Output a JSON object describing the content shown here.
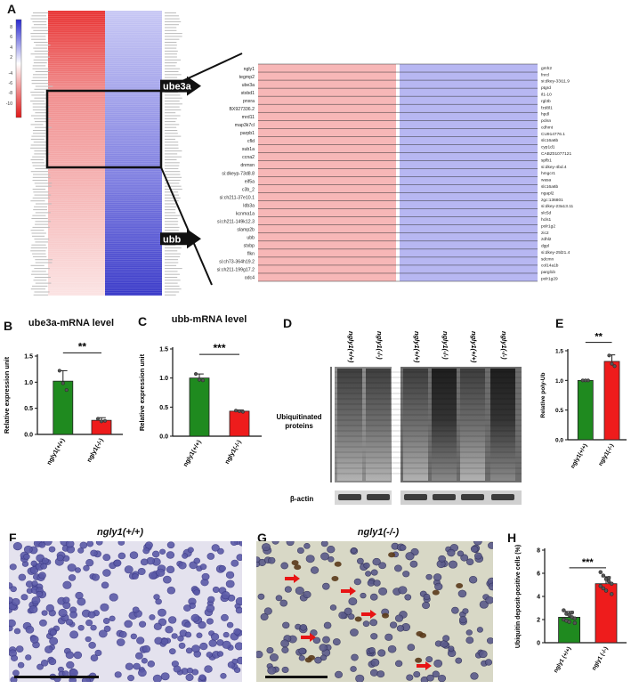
{
  "panels": {
    "a": "A",
    "b": "B",
    "c": "C",
    "d": "D",
    "e": "E",
    "f": "F",
    "g": "G",
    "h": "H"
  },
  "heatmap": {
    "colors": {
      "up": "#e83030",
      "up_light": "#f7b7b7",
      "down": "#3838c8",
      "down_light": "#b7b7f2",
      "border": "#111111"
    },
    "legend_ticks": [
      "8",
      "6",
      "4",
      "2",
      "-4",
      "-6",
      "-8",
      "-10"
    ],
    "arrow_labels": [
      "ube3a",
      "ubb"
    ],
    "left_genes": [
      "ngly1",
      "tegmp2",
      "ube3a",
      "stxbd1",
      "pnxra",
      "BX927336.2",
      "mrd11",
      "map3k7cl",
      "parpb1",
      "cfld",
      "sub1a",
      "ccna2",
      "dnmsn",
      "si:dkeyp-73d8.8",
      "eif5a",
      "c3b_2",
      "si:ch211-37e10.1",
      "ldb3a",
      "kcnma1a",
      "si:ch211-149k12.3",
      "slamp2b",
      "ubb",
      "stxbp",
      "flkn",
      "si:ch73-364h19.2",
      "si:ch211-199g17.2",
      "odc4"
    ],
    "right_genes": [
      "gmh2",
      "fnrcl",
      "si:dkey-33i11.9",
      "ptgrd",
      "il1-10",
      "rgl3b",
      "fzd8l1",
      "hpdl",
      "pclsn",
      "cdhmt",
      "CU914776.1",
      "slc16a6b",
      "cyp1d1",
      "CABZ01077121",
      "spfb1",
      "si:dkey-4bd.4",
      "hmgcr1",
      "wasa",
      "slc16a6b",
      "ngapl2",
      "zgc:136801",
      "si:dkey-23a13.11",
      "slc5d",
      "hcls1",
      "polr1g2",
      "zic2",
      "zdhl2",
      "dgpl",
      "si:dkey-25l21.4",
      "sdcmn",
      "col14a1b",
      "pargl1b",
      "polr1g29"
    ]
  },
  "chart_b": {
    "title": "ube3a-mRNA level",
    "ylabel": "Relative expression unit",
    "yticks": [
      "0.0",
      "0.5",
      "1.0",
      "1.5"
    ],
    "categories": [
      "ngly1(+/+)",
      "ngly1(-/-)"
    ],
    "significance": "**"
  },
  "chart_c": {
    "title": "ubb-mRNA level",
    "ylabel": "Relative expression unit",
    "yticks": [
      "0.0",
      "0.5",
      "1.0",
      "1.5"
    ],
    "categories": [
      "ngly1(+/+)",
      "ngly1(-/-)"
    ],
    "significance": "***"
  },
  "blot": {
    "lanes": [
      "ngly1(+/+)",
      "ngly1(-/-)",
      "ngly1(+/+)",
      "ngly1(-/-)",
      "ngly1(+/+)",
      "ngly1(-/-)"
    ],
    "label_ub": "Ubiquitinated proteins",
    "label_actin": "β-actin"
  },
  "chart_e": {
    "ylabel": "Relative poly-Ub",
    "yticks": [
      "0.0",
      "0.5",
      "1.0",
      "1.5"
    ],
    "categories": [
      "ngly1(+/+)",
      "ngly1(-/-)"
    ],
    "significance": "**"
  },
  "histo": {
    "f_title": "ngly1(+/+)",
    "g_title": "ngly1(-/-)"
  },
  "chart_h": {
    "ylabel": "Ubiquitin deposit-positive cells (%)",
    "yticks": [
      "0",
      "2",
      "4",
      "6",
      "8"
    ],
    "categories": [
      "ngly1 (+/+)",
      "ngly1 (-/-)"
    ],
    "significance": "***"
  },
  "chart_data": [
    {
      "type": "bar",
      "title": "ube3a-mRNA level",
      "ylabel": "Relative expression unit",
      "categories": [
        "ngly1(+/+)",
        "ngly1(-/-)"
      ],
      "values": [
        1.02,
        0.27
      ],
      "errors": [
        0.2,
        0.05
      ],
      "points": [
        [
          1.22,
          0.98,
          0.85
        ],
        [
          0.3,
          0.25,
          0.26
        ]
      ],
      "colors": [
        "#1f8a1f",
        "#ee1c1c"
      ],
      "ylim": [
        0,
        1.5
      ]
    },
    {
      "type": "bar",
      "title": "ubb-mRNA level",
      "ylabel": "Relative expression unit",
      "categories": [
        "ngly1(+/+)",
        "ngly1(-/-)"
      ],
      "values": [
        1.0,
        0.43
      ],
      "errors": [
        0.07,
        0.02
      ],
      "points": [
        [
          1.07,
          0.97,
          0.96
        ],
        [
          0.44,
          0.43,
          0.42
        ]
      ],
      "colors": [
        "#1f8a1f",
        "#ee1c1c"
      ],
      "ylim": [
        0,
        1.5
      ]
    },
    {
      "type": "bar",
      "title": "",
      "ylabel": "Relative poly-Ub",
      "categories": [
        "ngly1(+/+)",
        "ngly1(-/-)"
      ],
      "values": [
        1.0,
        1.32
      ],
      "errors": [
        0.01,
        0.11
      ],
      "points": [
        [
          1.0,
          1.0,
          1.0
        ],
        [
          1.42,
          1.28,
          1.24
        ]
      ],
      "colors": [
        "#1f8a1f",
        "#ee1c1c"
      ],
      "ylim": [
        0,
        1.5
      ]
    },
    {
      "type": "bar",
      "title": "",
      "ylabel": "Ubiquitin deposit-positive cells (%)",
      "categories": [
        "ngly1 (+/+)",
        "ngly1 (-/-)"
      ],
      "values": [
        2.2,
        5.1
      ],
      "errors": [
        0.5,
        0.6
      ],
      "points": [
        [
          2.8,
          2.5,
          2.4,
          2.2,
          2.1,
          2.0,
          1.9,
          1.8,
          2.6,
          1.7
        ],
        [
          6.1,
          5.8,
          5.5,
          5.3,
          5.1,
          4.9,
          4.7,
          4.5,
          5.6,
          4.2
        ]
      ],
      "colors": [
        "#1f8a1f",
        "#ee1c1c"
      ],
      "ylim": [
        0,
        8
      ]
    }
  ]
}
